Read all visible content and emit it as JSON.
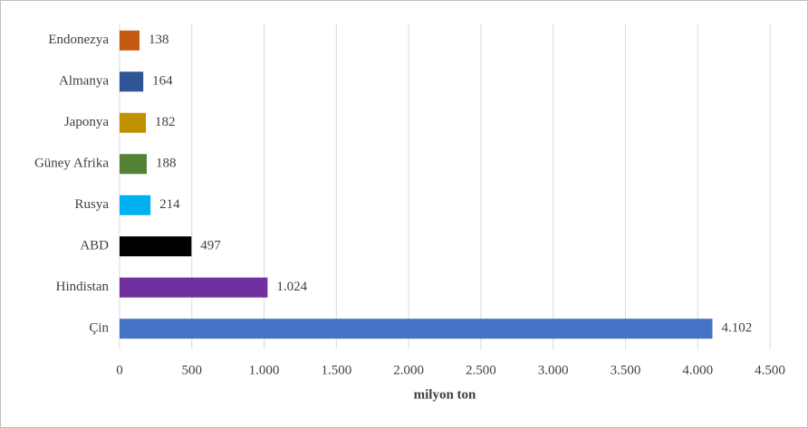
{
  "chart_data": {
    "type": "bar",
    "orientation": "horizontal",
    "x_label": "milyon ton",
    "categories": [
      "Endonezya",
      "Almanya",
      "Japonya",
      "Güney Afrika",
      "Rusya",
      "ABD",
      "Hindistan",
      "Çin"
    ],
    "values": [
      138,
      164,
      182,
      188,
      214,
      497,
      1024,
      4102
    ],
    "value_labels": [
      "138",
      "164",
      "182",
      "188",
      "214",
      "497",
      "1.024",
      "4.102"
    ],
    "colors": [
      "#c55a11",
      "#2f5597",
      "#bf9000",
      "#548235",
      "#00b0f0",
      "#000000",
      "#7030a0",
      "#4472c4"
    ],
    "xlim": [
      0,
      4500
    ],
    "xticks": [
      0,
      500,
      {
        "value": 1000,
        "label": "1.000"
      },
      {
        "value": 1500,
        "label": "1.500"
      },
      {
        "value": 2000,
        "label": "2.000"
      },
      {
        "value": 2500,
        "label": "2.500"
      },
      {
        "value": 3000,
        "label": "3.000"
      },
      {
        "value": 3500,
        "label": "3.500"
      },
      {
        "value": 4000,
        "label": "4.000"
      },
      {
        "value": 4500,
        "label": "4.500"
      }
    ],
    "grid": true
  }
}
